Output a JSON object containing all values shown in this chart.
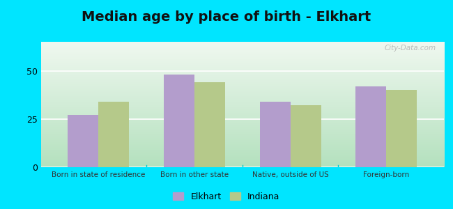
{
  "title": "Median age by place of birth - Elkhart",
  "categories": [
    "Born in state of residence",
    "Born in other state",
    "Native, outside of US",
    "Foreign-born"
  ],
  "elkhart_values": [
    27,
    48,
    34,
    42
  ],
  "indiana_values": [
    34,
    44,
    32,
    40
  ],
  "elkhart_color": "#b39dcc",
  "indiana_color": "#b5c98a",
  "ylim": [
    0,
    65
  ],
  "yticks": [
    0,
    25,
    50
  ],
  "bg_top_color": "#f0f8f0",
  "bg_bottom_color": "#c8edc8",
  "outer_background": "#00e5ff",
  "legend_labels": [
    "Elkhart",
    "Indiana"
  ],
  "title_fontsize": 14,
  "bar_width": 0.32,
  "grid_color": "#ffffff",
  "divider_color": "#00cccc",
  "watermark": "City-Data.com"
}
